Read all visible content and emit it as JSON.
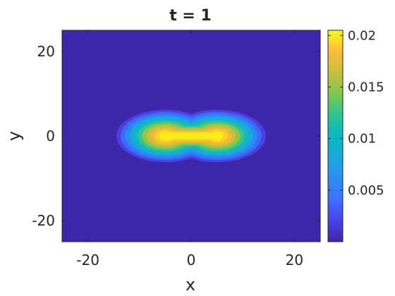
{
  "chart_data": {
    "type": "heatmap",
    "title": "t = 1",
    "xlabel": "x",
    "ylabel": "y",
    "xlim": [
      -25,
      25
    ],
    "ylim": [
      -25,
      25
    ],
    "xticks": [
      -20,
      0,
      20
    ],
    "yticks": [
      -20,
      0,
      20
    ],
    "grid": false,
    "colorbar": {
      "min": 0,
      "max": 0.0205,
      "ticks": [
        0.005,
        0.01,
        0.015,
        0.02
      ],
      "tick_labels": [
        "0.005",
        "0.01",
        "0.015",
        "0.02"
      ],
      "placement": "right",
      "colormap": "parula"
    },
    "peaks": [
      {
        "x": -5,
        "y": 0,
        "value": 0.02
      },
      {
        "x": 5,
        "y": 0,
        "value": 0.02
      }
    ],
    "colors": {
      "low": "#3e26a8",
      "high": "#f9fb15"
    }
  }
}
